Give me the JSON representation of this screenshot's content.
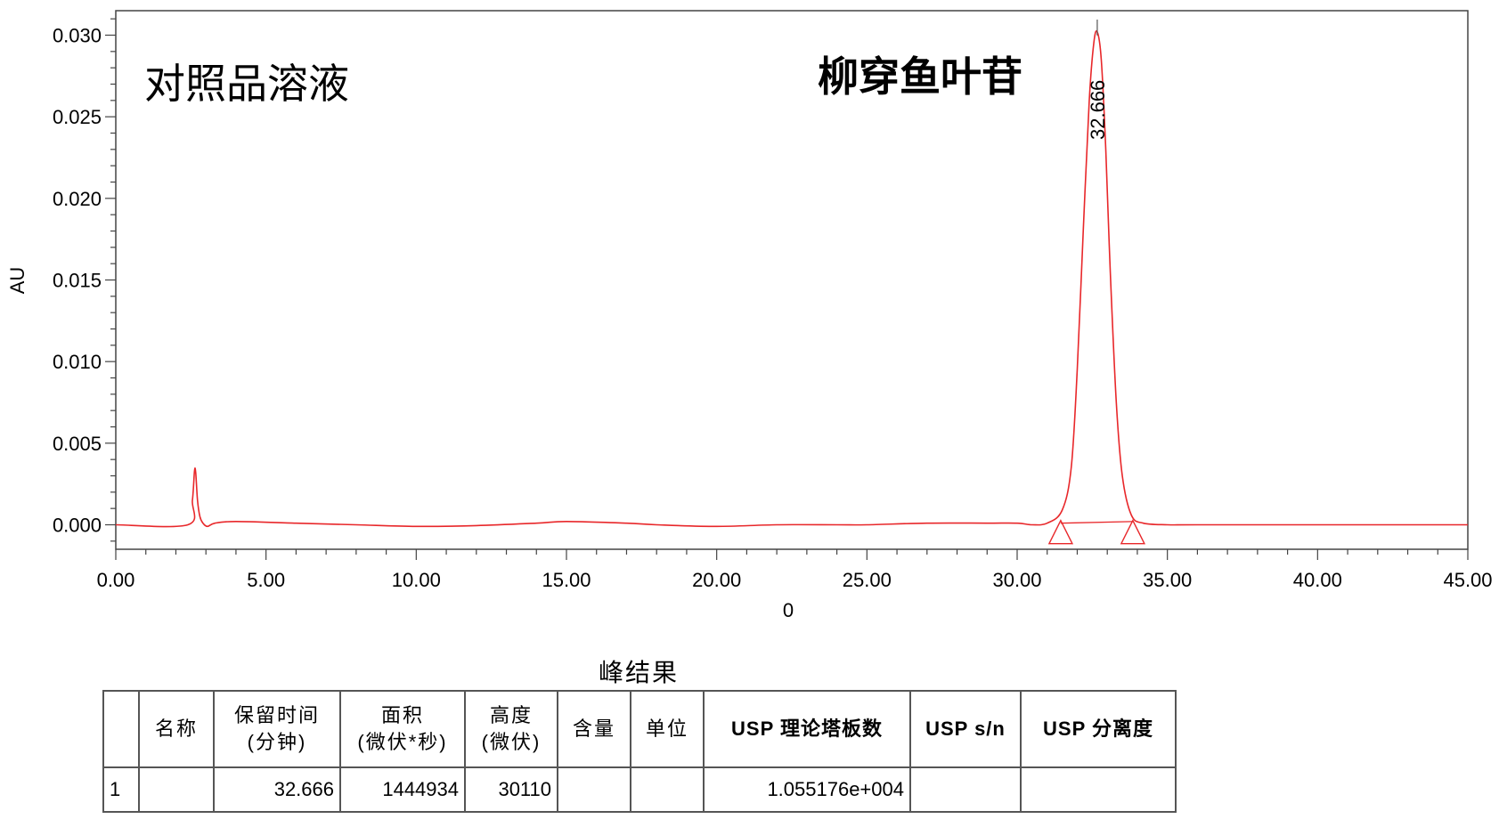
{
  "chart_data": {
    "type": "line",
    "title": "",
    "xlabel": "0",
    "ylabel": "AU",
    "xlim": [
      0,
      45
    ],
    "ylim": [
      -0.0015,
      0.0315
    ],
    "x_ticks": [
      "0.00",
      "5.00",
      "10.00",
      "15.00",
      "20.00",
      "25.00",
      "30.00",
      "35.00",
      "40.00",
      "45.00"
    ],
    "y_ticks": [
      "0.000",
      "0.005",
      "0.010",
      "0.015",
      "0.020",
      "0.025",
      "0.030"
    ],
    "grid": false,
    "line_color": "#e8272a",
    "annotations": {
      "sample_label": "对照品溶液",
      "compound_label": "柳穿鱼叶苷",
      "peak_label": "32.666"
    },
    "series": [
      {
        "x": [
          0,
          2.4,
          2.55,
          2.62,
          2.66,
          2.72,
          2.8,
          2.9,
          3.05,
          3.3,
          4,
          6,
          8,
          10,
          12,
          14,
          15,
          17,
          18,
          20,
          22,
          24,
          25,
          27,
          29,
          30,
          30.5,
          31,
          31.5,
          31.8,
          32.0,
          32.2,
          32.4,
          32.55,
          32.666,
          32.8,
          32.95,
          33.1,
          33.3,
          33.5,
          33.8,
          34.2,
          35,
          36,
          40,
          45
        ],
        "y": [
          0.0,
          0.0,
          0.0015,
          0.0033,
          0.0032,
          0.0015,
          0.0005,
          0.0001,
          -0.0001,
          0.0001,
          0.0002,
          0.0001,
          0.0,
          -0.0001,
          -5e-05,
          0.0001,
          0.0002,
          0.0001,
          0.0,
          -0.0001,
          0.0,
          0.0,
          0.0,
          0.0001,
          0.0001,
          0.0001,
          0.0,
          0.0001,
          0.0009,
          0.0035,
          0.0095,
          0.018,
          0.026,
          0.0295,
          0.0302,
          0.0285,
          0.023,
          0.0155,
          0.0075,
          0.003,
          0.0006,
          0.0001,
          0.0,
          0.0,
          0.0,
          0.0
        ]
      }
    ],
    "markers": [
      31.45,
      33.85
    ]
  },
  "table": {
    "title": "峰结果",
    "headers": [
      [
        "",
        ""
      ],
      [
        "名称",
        ""
      ],
      [
        "保留时间",
        "(分钟)"
      ],
      [
        "面积",
        "(微伏*秒)"
      ],
      [
        "高度",
        "(微伏)"
      ],
      [
        "含量",
        ""
      ],
      [
        "单位",
        ""
      ],
      [
        "USP 理论塔板数",
        ""
      ],
      [
        "USP s/n",
        ""
      ],
      [
        "USP 分离度",
        ""
      ]
    ],
    "rows": [
      [
        "1",
        "",
        "32.666",
        "1444934",
        "30110",
        "",
        "",
        "1.055176e+004",
        "",
        ""
      ]
    ]
  }
}
